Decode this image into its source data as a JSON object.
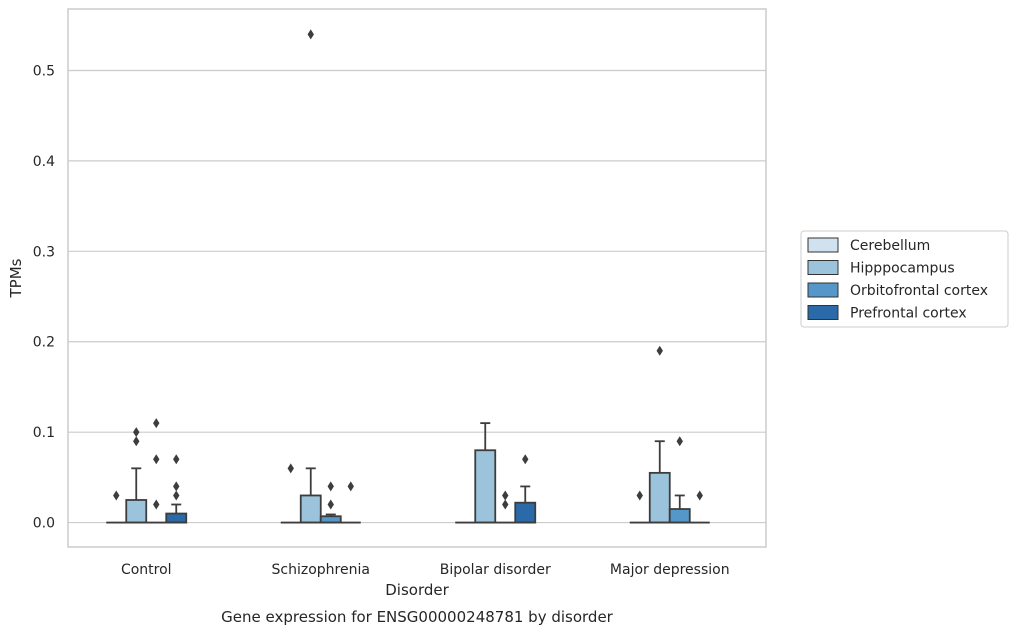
{
  "chart_data": {
    "type": "box",
    "xlabel": "Disorder",
    "ylabel": "TPMs",
    "caption": "Gene expression for ENSG00000248781 by disorder",
    "categories": [
      "Control",
      "Schizophrenia",
      "Bipolar disorder",
      "Major depression"
    ],
    "ylim": [
      -0.027,
      0.568
    ],
    "yticks": [
      0.0,
      0.1,
      0.2,
      0.3,
      0.4,
      0.5
    ],
    "ytick_labels": [
      "0.0",
      "0.1",
      "0.2",
      "0.3",
      "0.4",
      "0.5"
    ],
    "grid": true,
    "legend": {
      "placement": "right",
      "entries": [
        {
          "name": "Cerebellum",
          "color": "#d0e1f0"
        },
        {
          "name": "Hipppocampus",
          "color": "#9bc3dc"
        },
        {
          "name": "Orbitofrontal cortex",
          "color": "#5597c8"
        },
        {
          "name": "Prefrontal cortex",
          "color": "#2b6aa8"
        }
      ]
    },
    "series": [
      {
        "name": "Cerebellum",
        "boxes": [
          {
            "q1": 0,
            "median": 0,
            "q3": 0,
            "whislo": 0,
            "whishi": 0,
            "fliers": [
              0.03
            ]
          },
          {
            "q1": 0,
            "median": 0,
            "q3": 0,
            "whislo": 0,
            "whishi": 0,
            "fliers": [
              0.06
            ]
          },
          {
            "q1": 0,
            "median": 0,
            "q3": 0,
            "whislo": 0,
            "whishi": 0,
            "fliers": []
          },
          {
            "q1": 0,
            "median": 0,
            "q3": 0,
            "whislo": 0,
            "whishi": 0,
            "fliers": [
              0.03
            ]
          }
        ]
      },
      {
        "name": "Hipppocampus",
        "boxes": [
          {
            "q1": 0,
            "median": 0,
            "q3": 0.025,
            "whislo": 0,
            "whishi": 0.06,
            "fliers": [
              0.09,
              0.1
            ]
          },
          {
            "q1": 0,
            "median": 0,
            "q3": 0.03,
            "whislo": 0,
            "whishi": 0.06,
            "fliers": [
              0.54
            ]
          },
          {
            "q1": 0,
            "median": 0,
            "q3": 0.08,
            "whislo": 0,
            "whishi": 0.11,
            "fliers": []
          },
          {
            "q1": 0,
            "median": 0,
            "q3": 0.055,
            "whislo": 0,
            "whishi": 0.09,
            "fliers": [
              0.19
            ]
          }
        ]
      },
      {
        "name": "Orbitofrontal cortex",
        "boxes": [
          {
            "q1": 0,
            "median": 0,
            "q3": 0,
            "whislo": 0,
            "whishi": 0,
            "fliers": [
              0.02,
              0.07,
              0.11
            ]
          },
          {
            "q1": 0,
            "median": 0,
            "q3": 0.007,
            "whislo": 0,
            "whishi": 0.009,
            "fliers": [
              0.02,
              0.04
            ]
          },
          {
            "q1": 0,
            "median": 0,
            "q3": 0,
            "whislo": 0,
            "whishi": 0,
            "fliers": [
              0.02,
              0.03
            ]
          },
          {
            "q1": 0,
            "median": 0,
            "q3": 0.015,
            "whislo": 0,
            "whishi": 0.03,
            "fliers": [
              0.09
            ]
          }
        ]
      },
      {
        "name": "Prefrontal cortex",
        "boxes": [
          {
            "q1": 0,
            "median": 0,
            "q3": 0.01,
            "whislo": 0,
            "whishi": 0.02,
            "fliers": [
              0.03,
              0.04,
              0.07
            ]
          },
          {
            "q1": 0,
            "median": 0,
            "q3": 0,
            "whislo": 0,
            "whishi": 0,
            "fliers": [
              0.04
            ]
          },
          {
            "q1": 0,
            "median": 0,
            "q3": 0.022,
            "whislo": 0,
            "whishi": 0.04,
            "fliers": [
              0.07
            ]
          },
          {
            "q1": 0,
            "median": 0,
            "q3": 0,
            "whislo": 0,
            "whishi": 0,
            "fliers": [
              0.03
            ]
          }
        ]
      }
    ]
  }
}
